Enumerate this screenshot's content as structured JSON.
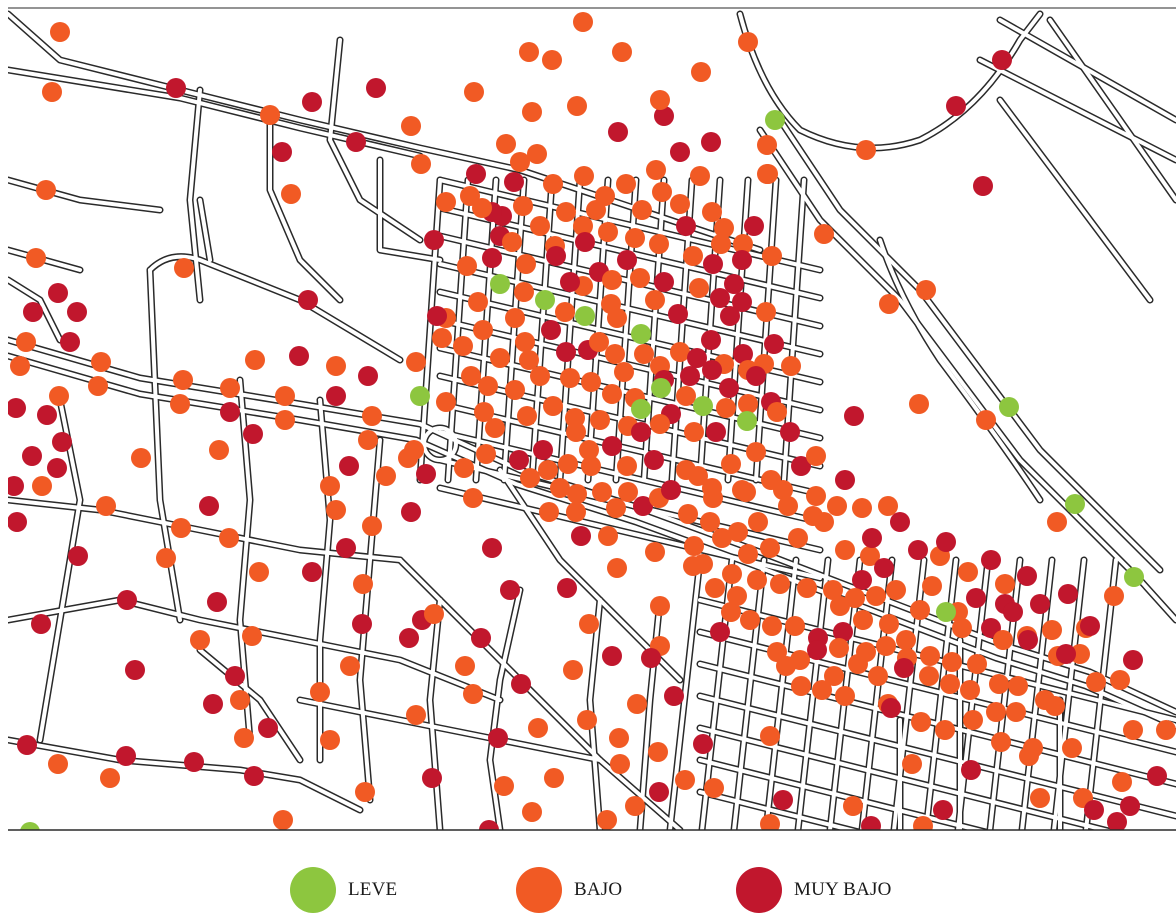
{
  "colors": {
    "leve": "#8dc63f",
    "bajo": "#f15a24",
    "muy_bajo": "#c1172d",
    "street": "#2a2a2a",
    "background": "#ffffff"
  },
  "legend": {
    "items": [
      {
        "key": "leve",
        "label": "LEVE"
      },
      {
        "key": "bajo",
        "label": "BAJO"
      },
      {
        "key": "muy_bajo",
        "label": "MUY BAJO"
      }
    ]
  }
}
